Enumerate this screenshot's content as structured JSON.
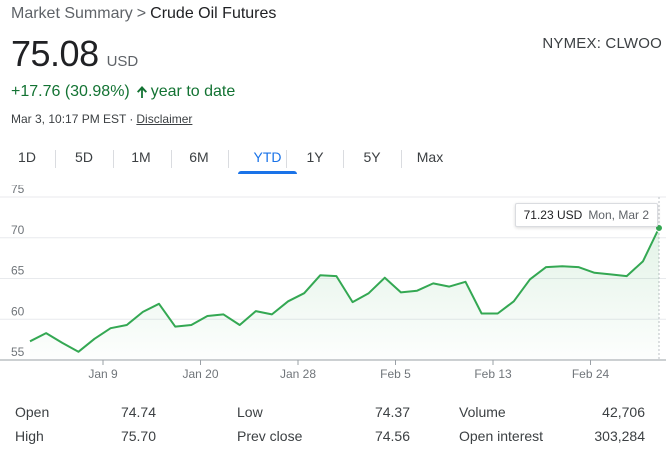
{
  "breadcrumb": {
    "parent": "Market Summary",
    "separator": ">",
    "current": "Crude Oil Futures"
  },
  "quote": {
    "price": "75.08",
    "currency": "USD",
    "exchange": "NYMEX: CLWOO",
    "change": "+17.76 (30.98%)",
    "change_period": "year to date",
    "timestamp": "Mar 3, 10:17 PM EST",
    "dot": "·",
    "disclaimer": "Disclaimer",
    "change_color": "#137333"
  },
  "range_tabs": [
    {
      "label": "1D",
      "active": false
    },
    {
      "label": "5D",
      "active": false
    },
    {
      "label": "1M",
      "active": false
    },
    {
      "label": "6M",
      "active": false
    },
    {
      "label": "YTD",
      "active": true
    },
    {
      "label": "1Y",
      "active": false
    },
    {
      "label": "5Y",
      "active": false
    },
    {
      "label": "Max",
      "active": false
    }
  ],
  "tooltip": {
    "value": "71.23 USD",
    "date": "Mon, Mar 2"
  },
  "stats": {
    "open": {
      "label": "Open",
      "value": "74.74"
    },
    "high": {
      "label": "High",
      "value": "75.70"
    },
    "low": {
      "label": "Low",
      "value": "74.37"
    },
    "prev_close": {
      "label": "Prev close",
      "value": "74.56"
    },
    "volume": {
      "label": "Volume",
      "value": "42,706"
    },
    "open_interest": {
      "label": "Open interest",
      "value": "303,284"
    }
  },
  "chart_data": {
    "type": "area",
    "ylim": [
      55,
      75
    ],
    "yticks": [
      "75",
      "70",
      "65",
      "60",
      "55"
    ],
    "xticks": [
      "Jan 9",
      "Jan 20",
      "Jan 28",
      "Feb 5",
      "Feb 13",
      "Feb 24"
    ],
    "grid": true,
    "line_color": "#34a853",
    "series": [
      {
        "values": [
          57.3,
          58.3,
          57.1,
          56.0,
          57.6,
          58.9,
          59.3,
          60.9,
          61.9,
          59.1,
          59.3,
          60.4,
          60.6,
          59.3,
          61.0,
          60.6,
          62.2,
          63.2,
          65.4,
          65.3,
          62.1,
          63.2,
          65.1,
          63.3,
          63.5,
          64.4,
          64.0,
          64.6,
          60.7,
          60.7,
          62.2,
          64.9,
          66.4,
          66.5,
          66.4,
          65.7,
          65.5,
          65.3,
          67.1,
          71.2
        ]
      }
    ]
  }
}
